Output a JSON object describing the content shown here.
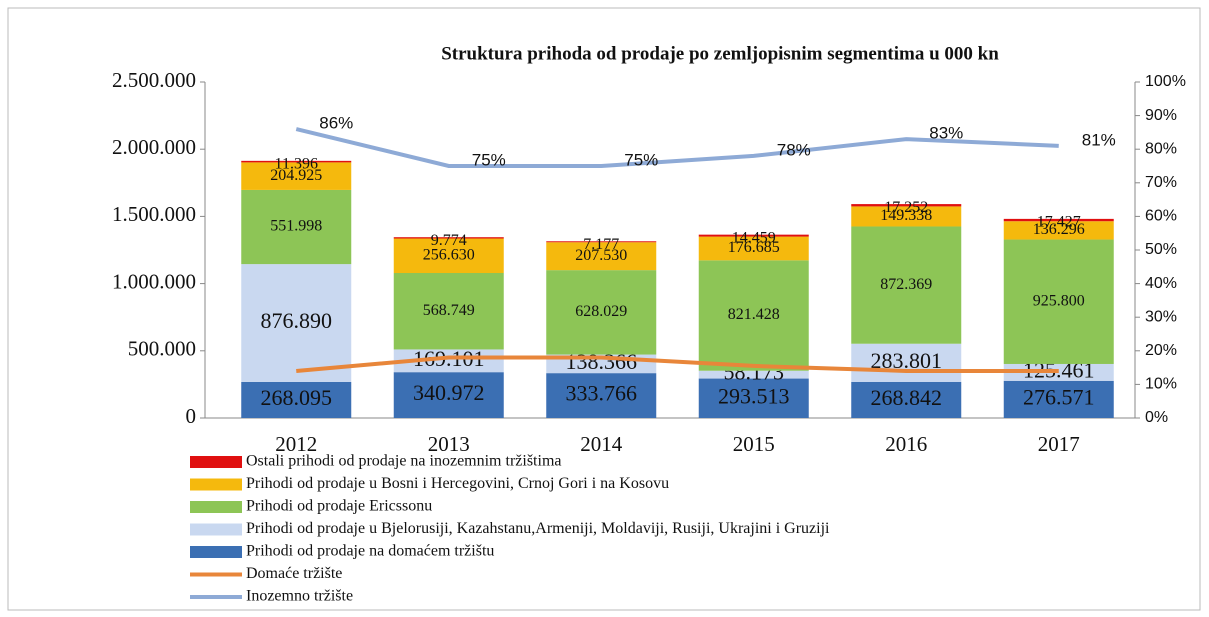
{
  "chart_data": {
    "type": "bar",
    "title": "Struktura  prihoda  od prodaje  po zemljopisnim  segmentima u 000 kn",
    "categories": [
      "2012",
      "2013",
      "2014",
      "2015",
      "2016",
      "2017"
    ],
    "series": [
      {
        "name": "Prihodi od prodaje na domaćem tržištu",
        "color": "#3b6fb3",
        "values": [
          268095,
          340972,
          333766,
          293513,
          268842,
          276571
        ],
        "value_labels": [
          "268.095",
          "340.972",
          "333.766",
          "293.513",
          "268.842",
          "276.571"
        ]
      },
      {
        "name": "Prihodi od prodaje u Bjelorusiji, Kazahstanu,Armeniji, Moldaviji, Rusiji, Ukrajini i Gruziji",
        "color": "#c9d8f0",
        "values": [
          876890,
          169101,
          138366,
          58173,
          283801,
          125461
        ],
        "value_labels": [
          "876.890",
          "169.101",
          "138.366",
          "58.173",
          "283.801",
          "125.461"
        ]
      },
      {
        "name": "Prihodi od prodaje Ericssonu",
        "color": "#8dc556",
        "values": [
          551998,
          568749,
          628029,
          821428,
          872369,
          925800
        ],
        "value_labels": [
          "551.998",
          "568.749",
          "628.029",
          "821.428",
          "872.369",
          "925.800"
        ]
      },
      {
        "name": "Prihodi od prodaje u Bosni i Hercegovini, Crnoj Gori i na Kosovu",
        "color": "#f5b90d",
        "values": [
          204925,
          256630,
          207530,
          176685,
          149338,
          136296
        ],
        "value_labels": [
          "204.925",
          "256.630",
          "207.530",
          "176.685",
          "149.338",
          "136.296"
        ]
      },
      {
        "name": "Ostali prihodi od prodaje na inozemnim tržištima",
        "color": "#e01010",
        "values": [
          11396,
          9774,
          7177,
          14459,
          17252,
          17427
        ],
        "value_labels": [
          "11.396",
          "9.774",
          "7.177",
          "14.459",
          "17.252",
          "17.427"
        ]
      },
      {
        "name": "Domaće tržište",
        "type": "line",
        "axis": "y2",
        "color": "#e8863a",
        "values": [
          14,
          18,
          18,
          15.5,
          14,
          14
        ]
      },
      {
        "name": "Inozemno tržište",
        "type": "line",
        "axis": "y2",
        "color": "#8eaad6",
        "values": [
          86,
          75,
          75,
          78,
          83,
          81
        ],
        "value_labels": [
          "86%",
          "75%",
          "75%",
          "78%",
          "83%",
          "81%"
        ]
      }
    ],
    "ylim": [
      0,
      2500000
    ],
    "yticks": [
      0,
      {
        "value": 500000,
        "label": "500.000"
      },
      {
        "value": 1000000,
        "label": "1.000.000"
      },
      {
        "value": 1500000,
        "label": "1.500.000"
      },
      {
        "value": 2000000,
        "label": "2.000.000"
      },
      {
        "value": 2500000,
        "label": "2.500.000"
      }
    ],
    "y2lim": [
      0,
      100
    ],
    "y2ticks": [
      {
        "value": 0,
        "label": "0%"
      },
      {
        "value": 10,
        "label": "10%"
      },
      {
        "value": 20,
        "label": "20%"
      },
      {
        "value": 30,
        "label": "30%"
      },
      {
        "value": 40,
        "label": "40%"
      },
      {
        "value": 50,
        "label": "50%"
      },
      {
        "value": 60,
        "label": "60%"
      },
      {
        "value": 70,
        "label": "70%"
      },
      {
        "value": 80,
        "label": "80%"
      },
      {
        "value": 90,
        "label": "90%"
      },
      {
        "value": 100,
        "label": "100%"
      }
    ]
  }
}
